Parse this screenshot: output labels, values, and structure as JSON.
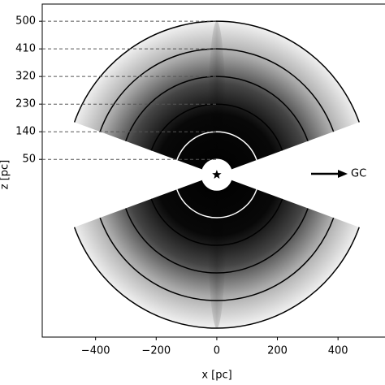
{
  "chart_data": {
    "type": "density-map",
    "xlabel": "x [pc]",
    "ylabel": "z [pc]",
    "xlim": [
      -576,
      555
    ],
    "ylim": [
      -529,
      556
    ],
    "xticks": [
      {
        "value": -400,
        "label": "−400"
      },
      {
        "value": -200,
        "label": "−200"
      },
      0,
      200,
      400
    ],
    "yticks": [
      50,
      140,
      230,
      320,
      410,
      500
    ],
    "arcs": [
      {
        "radius": 50,
        "color": "#ffffff"
      },
      {
        "radius": 140,
        "color": "#ffffff"
      },
      {
        "radius": 230,
        "color": "#000000"
      },
      {
        "radius": 320,
        "color": "#000000"
      },
      {
        "radius": 410,
        "color": "#000000"
      },
      {
        "radius": 500,
        "color": "#000000"
      }
    ],
    "annotation": "GC"
  }
}
